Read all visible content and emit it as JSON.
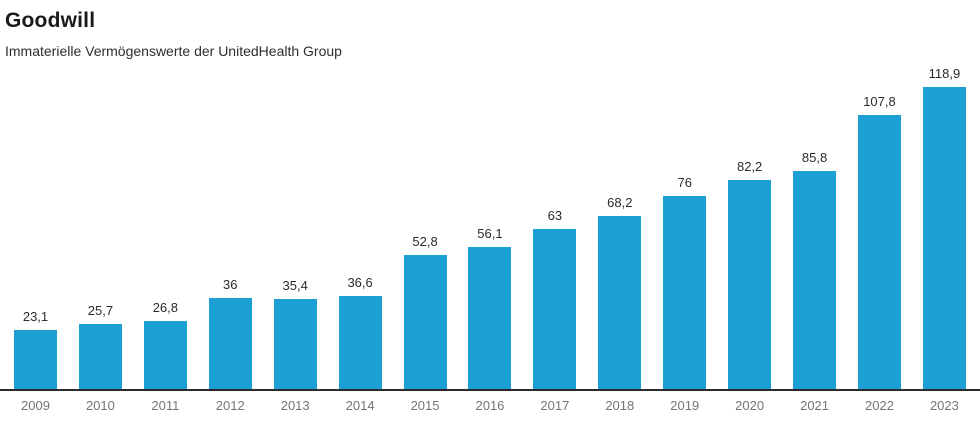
{
  "header": {
    "title": "Goodwill",
    "subtitle": "Immaterielle Vermögenswerte der UnitedHealth Group"
  },
  "chart_data": {
    "type": "bar",
    "title": "Goodwill",
    "subtitle": "Immaterielle Vermögenswerte der UnitedHealth Group",
    "categories": [
      "2009",
      "2010",
      "2011",
      "2012",
      "2013",
      "2014",
      "2015",
      "2016",
      "2017",
      "2018",
      "2019",
      "2020",
      "2021",
      "2022",
      "2023"
    ],
    "values": [
      23.1,
      25.7,
      26.8,
      36,
      35.4,
      36.6,
      52.8,
      56.1,
      63,
      68.2,
      76,
      82.2,
      85.8,
      107.8,
      118.9
    ],
    "value_labels": [
      "23,1",
      "25,7",
      "26,8",
      "36",
      "35,4",
      "36,6",
      "52,8",
      "56,1",
      "63",
      "68,2",
      "76",
      "82,2",
      "85,8",
      "107,8",
      "118,9"
    ],
    "xlabel": "",
    "ylabel": "",
    "ylim": [
      0,
      125
    ],
    "grid": false,
    "legend": false,
    "bar_color": "#1ca0d3",
    "axis_line_color": "#2b2b2b",
    "value_label_color": "#2b2b2b",
    "tick_label_color": "#757575"
  }
}
